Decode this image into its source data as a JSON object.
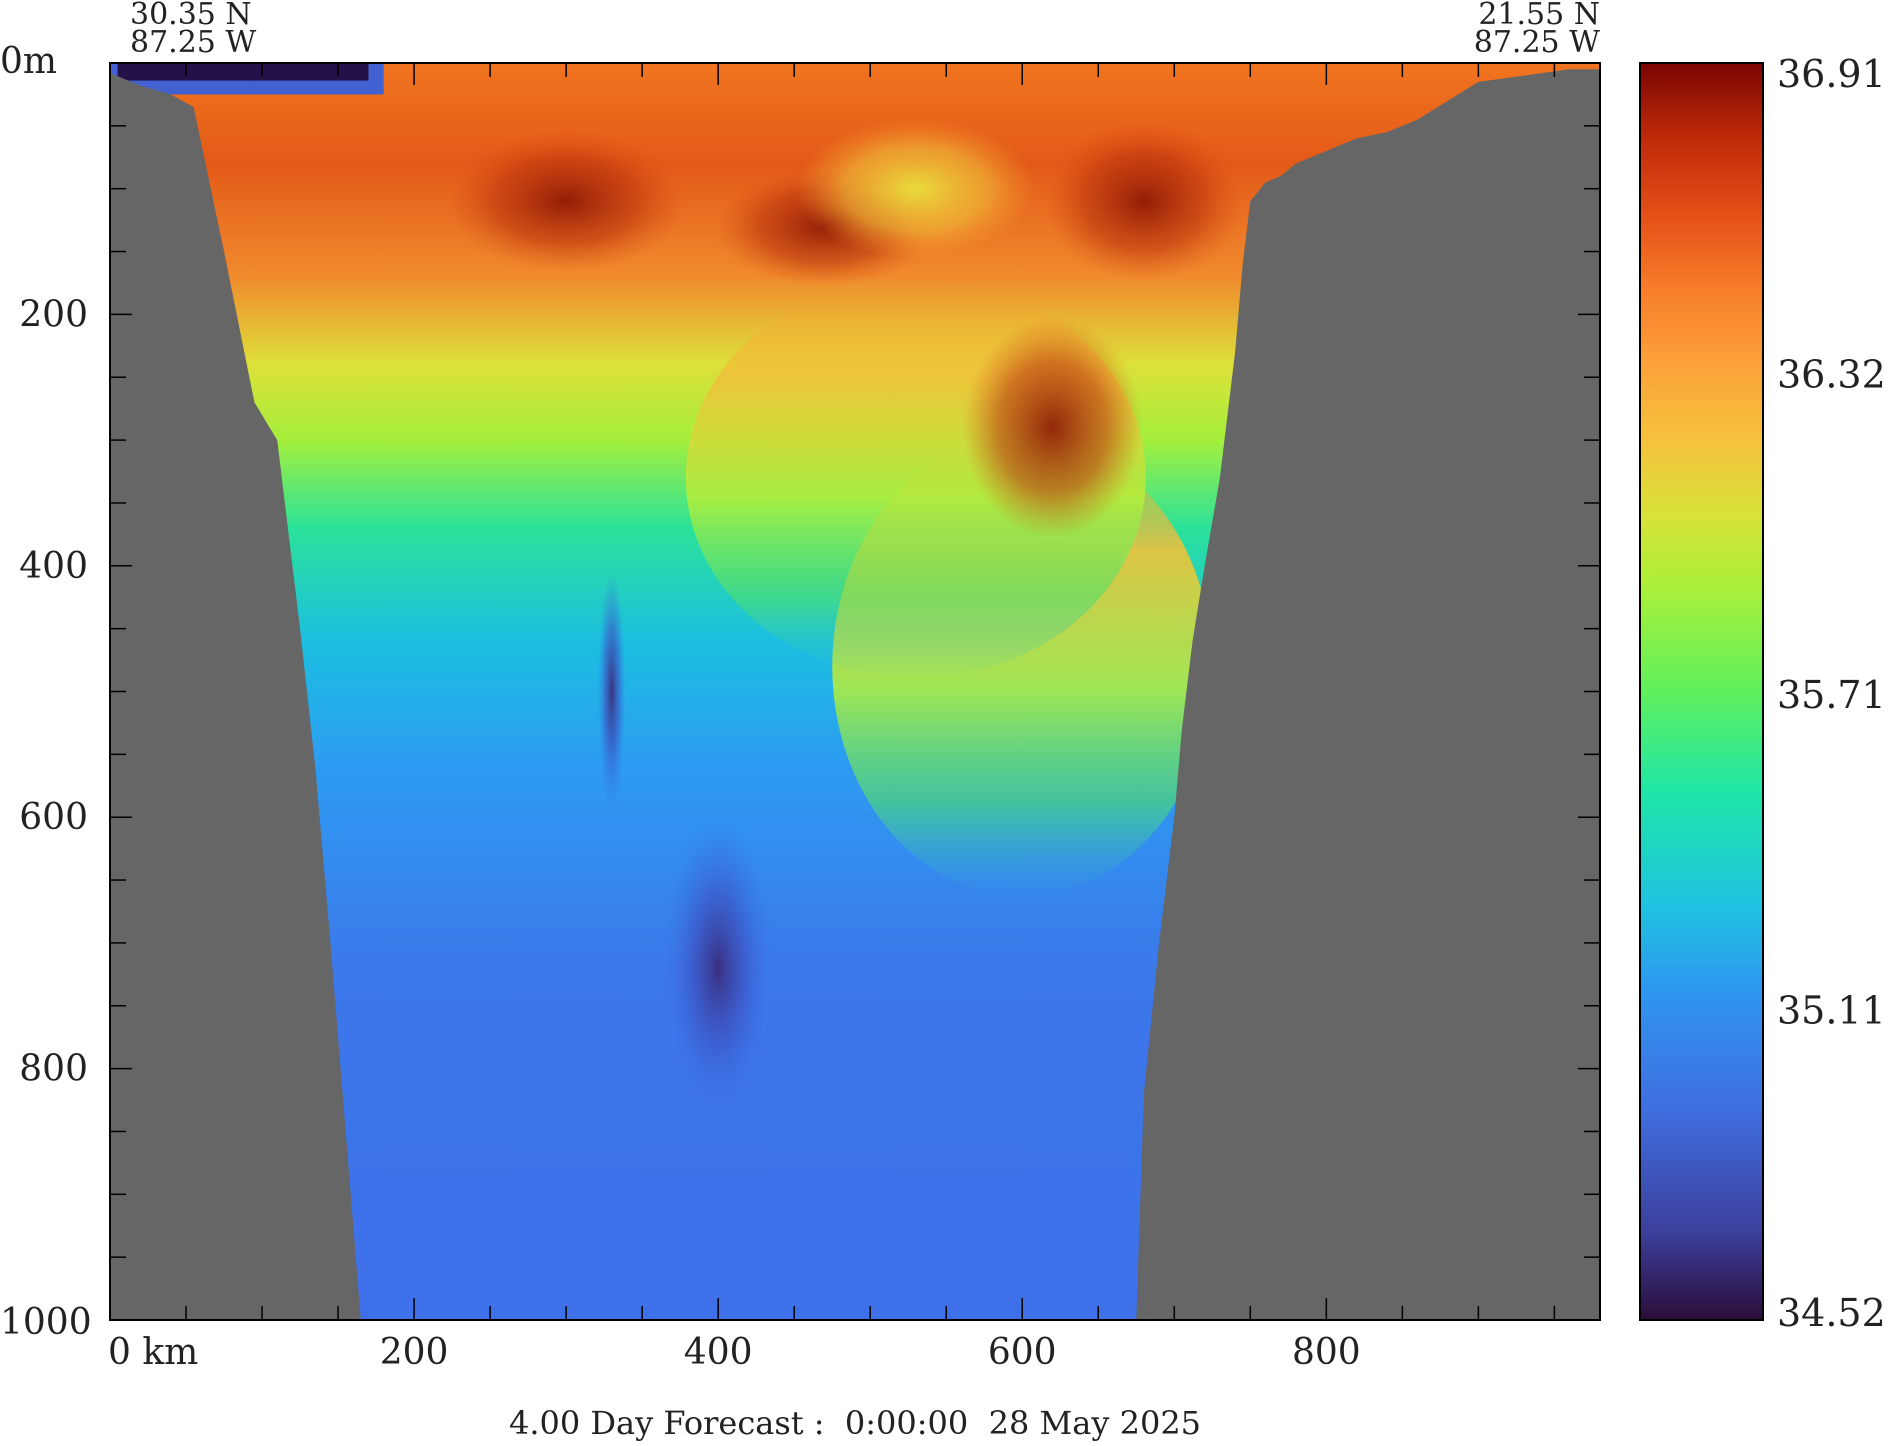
{
  "chart_data": {
    "type": "heatmap",
    "title": "",
    "xlabel": "",
    "ylabel": "",
    "x_unit_label": "km",
    "y_unit_label": "m",
    "xlim": [
      0,
      980
    ],
    "ylim": [
      0,
      1000
    ],
    "y_inverted": true,
    "x_ticks": [
      0,
      200,
      400,
      600,
      800
    ],
    "x_tick_labels": [
      "0 km",
      "200",
      "400",
      "600",
      "800"
    ],
    "y_ticks": [
      0,
      200,
      400,
      600,
      800,
      1000
    ],
    "y_tick_labels": [
      "0m",
      "200",
      "400",
      "600",
      "800",
      "1000"
    ],
    "x_minor_step": 50,
    "y_minor_step": 50,
    "start_point": {
      "lat": "30.35 N",
      "lon": "87.25 W"
    },
    "end_point": {
      "lat": "21.55 N",
      "lon": "87.25 W"
    },
    "colorbar": {
      "min": 34.52,
      "max": 36.91,
      "tick_values": [
        36.91,
        36.32,
        35.71,
        35.11,
        34.52
      ],
      "tick_labels": [
        "36.91",
        "36.32",
        "35.71",
        "35.11",
        "34.52"
      ]
    },
    "caption": "4.00 Day Forecast :  0:00:00  28 May 2025",
    "bathymetry_left": [
      [
        0,
        8
      ],
      [
        20,
        18
      ],
      [
        40,
        25
      ],
      [
        55,
        35
      ],
      [
        75,
        150
      ],
      [
        95,
        270
      ],
      [
        110,
        300
      ],
      [
        125,
        450
      ],
      [
        135,
        560
      ],
      [
        145,
        700
      ],
      [
        155,
        850
      ],
      [
        165,
        1000
      ]
    ],
    "bathymetry_right": [
      [
        960,
        5
      ],
      [
        930,
        10
      ],
      [
        900,
        15
      ],
      [
        880,
        30
      ],
      [
        860,
        45
      ],
      [
        840,
        55
      ],
      [
        820,
        60
      ],
      [
        800,
        70
      ],
      [
        780,
        80
      ],
      [
        770,
        90
      ],
      [
        760,
        95
      ],
      [
        750,
        110
      ],
      [
        745,
        160
      ],
      [
        740,
        230
      ],
      [
        735,
        280
      ],
      [
        730,
        330
      ],
      [
        720,
        400
      ],
      [
        712,
        460
      ],
      [
        705,
        530
      ],
      [
        700,
        600
      ],
      [
        690,
        700
      ],
      [
        680,
        820
      ],
      [
        675,
        1000
      ]
    ],
    "colors": {
      "land": "#666666",
      "frame": "#000000",
      "background": "#ffffff"
    }
  }
}
